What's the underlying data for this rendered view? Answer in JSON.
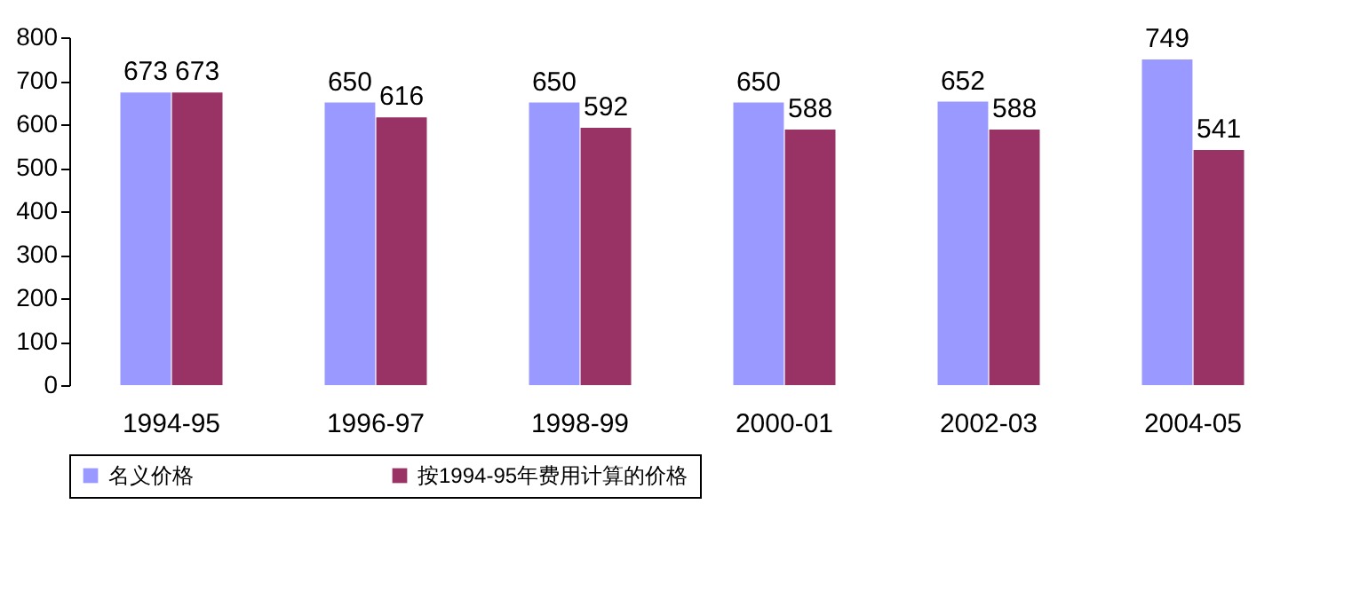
{
  "chart_data": {
    "type": "bar",
    "categories": [
      "1994-95",
      "1996-97",
      "1998-99",
      "2000-01",
      "2002-03",
      "2004-05"
    ],
    "series": [
      {
        "name": "名义价格",
        "color": "#9999ff",
        "values": [
          673,
          650,
          650,
          650,
          652,
          749
        ]
      },
      {
        "name": "按1994-95年费用计算的价格",
        "color": "#993366",
        "values": [
          673,
          616,
          592,
          588,
          588,
          541
        ]
      }
    ],
    "ylim": [
      0,
      800
    ],
    "yticks": [
      0,
      100,
      200,
      300,
      400,
      500,
      600,
      700,
      800
    ],
    "grid": false,
    "legend": "bottom",
    "data_labels": true
  }
}
